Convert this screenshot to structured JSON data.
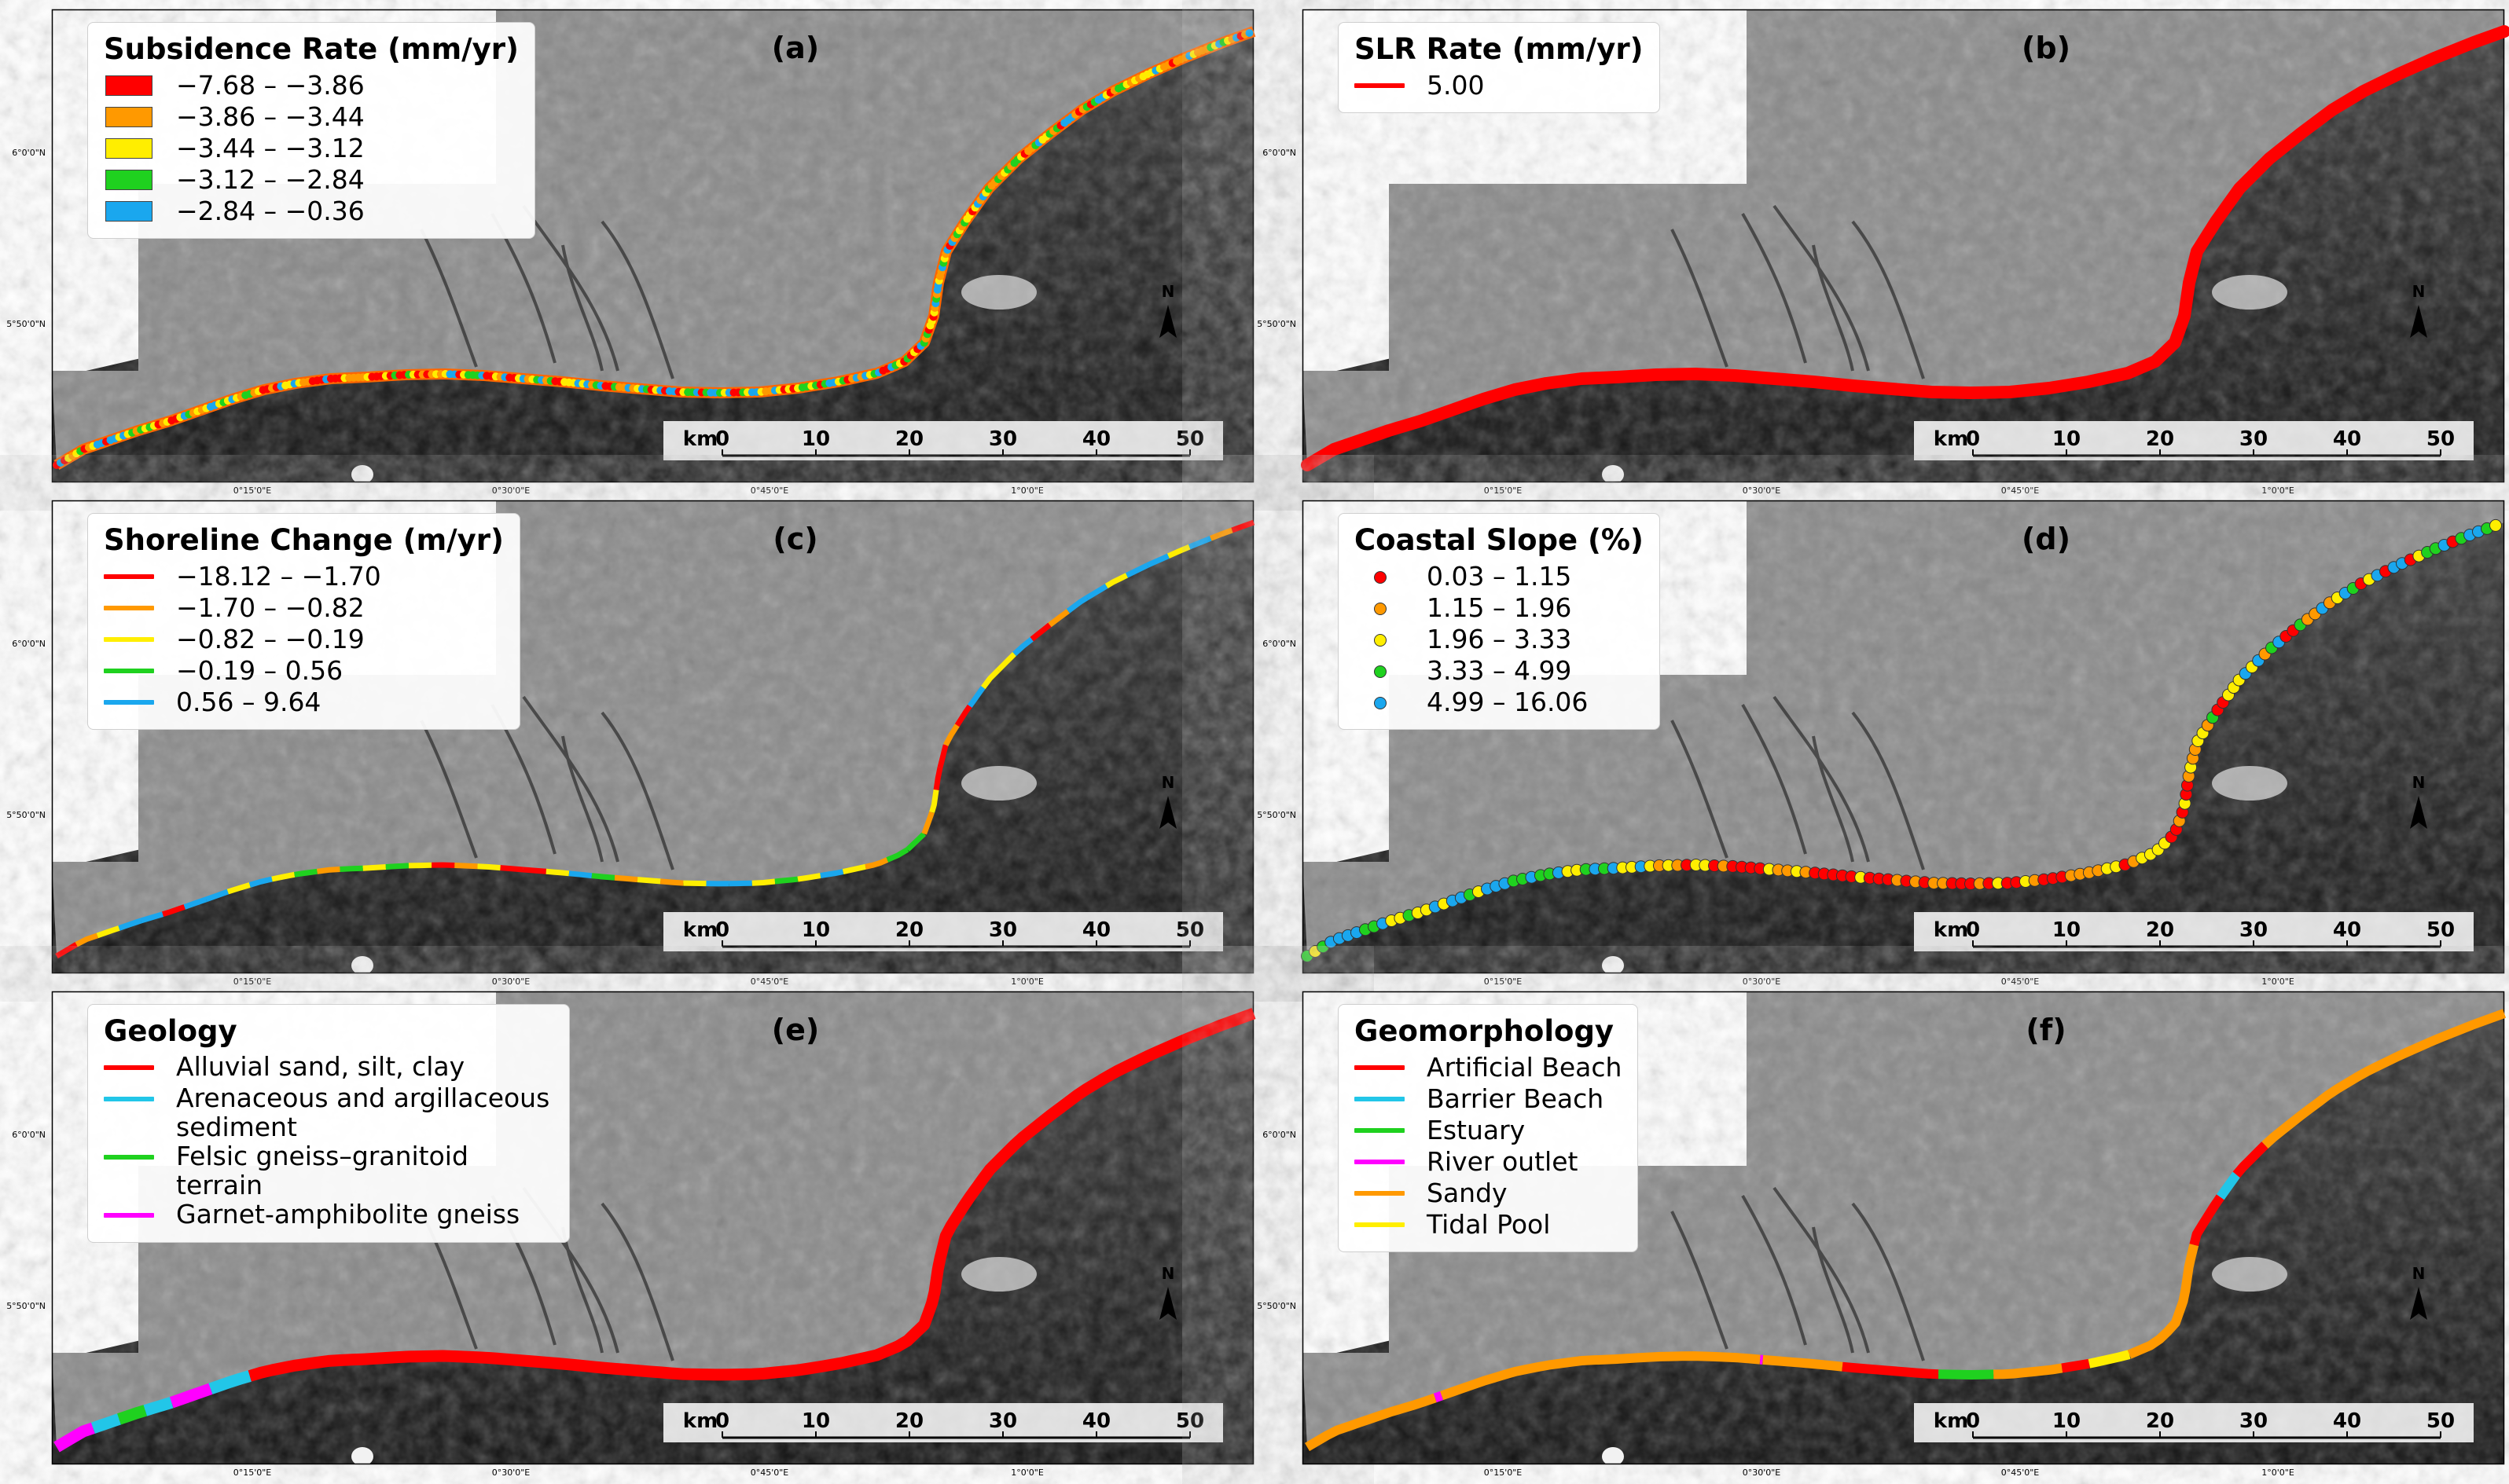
{
  "colors": {
    "red": "#ff0000",
    "orange": "#ff9900",
    "yellow": "#ffee00",
    "green": "#1fd11f",
    "blue": "#1aa7ee",
    "cyan": "#22c6e8",
    "magenta": "#ff00ff",
    "sea": "#1c1c1c",
    "land": "#8c8c8c"
  },
  "map_common": {
    "lat_ticks": [
      "6°0'0\"N",
      "5°50'0\"N"
    ],
    "lon_ticks": [
      "0°15'0\"E",
      "0°30'0\"E",
      "0°45'0\"E",
      "1°0'0\"E"
    ],
    "scalebar": {
      "unit": "km",
      "ticks": [
        "0",
        "10",
        "20",
        "30",
        "40",
        "50"
      ]
    },
    "north_label": "N"
  },
  "panels": [
    {
      "id": "a",
      "panel_label": "(a)",
      "legend_title": "Subsidence Rate (mm/yr)",
      "symbol": "patch",
      "legend_items": [
        {
          "label": "−7.68 – −3.86",
          "color": "#ff0000"
        },
        {
          "label": "−3.86 – −3.44",
          "color": "#ff9900"
        },
        {
          "label": "−3.44 – −3.12",
          "color": "#ffee00"
        },
        {
          "label": "−3.12 – −2.84",
          "color": "#1fd11f"
        },
        {
          "label": "−2.84 – −0.36",
          "color": "#1aa7ee"
        }
      ],
      "style": "mixed"
    },
    {
      "id": "b",
      "panel_label": "(b)",
      "legend_title": "SLR Rate (mm/yr)",
      "symbol": "line",
      "legend_items": [
        {
          "label": "5.00",
          "color": "#ff0000"
        }
      ],
      "style": "solid"
    },
    {
      "id": "c",
      "panel_label": "(c)",
      "legend_title": "Shoreline Change (m/yr)",
      "symbol": "line",
      "legend_items": [
        {
          "label": "−18.12 – −1.70",
          "color": "#ff0000"
        },
        {
          "label": "−1.70 – −0.82",
          "color": "#ff9900"
        },
        {
          "label": "−0.82 – −0.19",
          "color": "#ffee00"
        },
        {
          "label": "−0.19 – 0.56",
          "color": "#1fd11f"
        },
        {
          "label": "0.56 – 9.64",
          "color": "#1aa7ee"
        }
      ],
      "style": "segments"
    },
    {
      "id": "d",
      "panel_label": "(d)",
      "legend_title": "Coastal Slope (%)",
      "symbol": "dot",
      "legend_items": [
        {
          "label": "0.03 – 1.15",
          "color": "#ff0000"
        },
        {
          "label": "1.15 – 1.96",
          "color": "#ff9900"
        },
        {
          "label": "1.96 – 3.33",
          "color": "#ffee00"
        },
        {
          "label": "3.33 – 4.99",
          "color": "#1fd11f"
        },
        {
          "label": "4.99 – 16.06",
          "color": "#1aa7ee"
        }
      ],
      "style": "dots"
    },
    {
      "id": "e",
      "panel_label": "(e)",
      "legend_title": "Geology",
      "symbol": "line",
      "legend_items": [
        {
          "label": "Alluvial sand, silt, clay",
          "color": "#ff0000"
        },
        {
          "label": "Arenaceous and argillaceous sediment",
          "color": "#22c6e8"
        },
        {
          "label": "Felsic gneiss–granitoid terrain",
          "color": "#1fd11f"
        },
        {
          "label": "Garnet-amphibolite gneiss",
          "color": "#ff00ff"
        }
      ],
      "style": "geology"
    },
    {
      "id": "f",
      "panel_label": "(f)",
      "legend_title": "Geomorphology",
      "symbol": "line",
      "legend_items": [
        {
          "label": "Artificial Beach",
          "color": "#ff0000"
        },
        {
          "label": "Barrier Beach",
          "color": "#22c6e8"
        },
        {
          "label": "Estuary",
          "color": "#1fd11f"
        },
        {
          "label": "River outlet",
          "color": "#ff00ff"
        },
        {
          "label": "Sandy",
          "color": "#ff9900"
        },
        {
          "label": "Tidal Pool",
          "color": "#ffee00"
        }
      ],
      "style": "geomorph"
    }
  ]
}
